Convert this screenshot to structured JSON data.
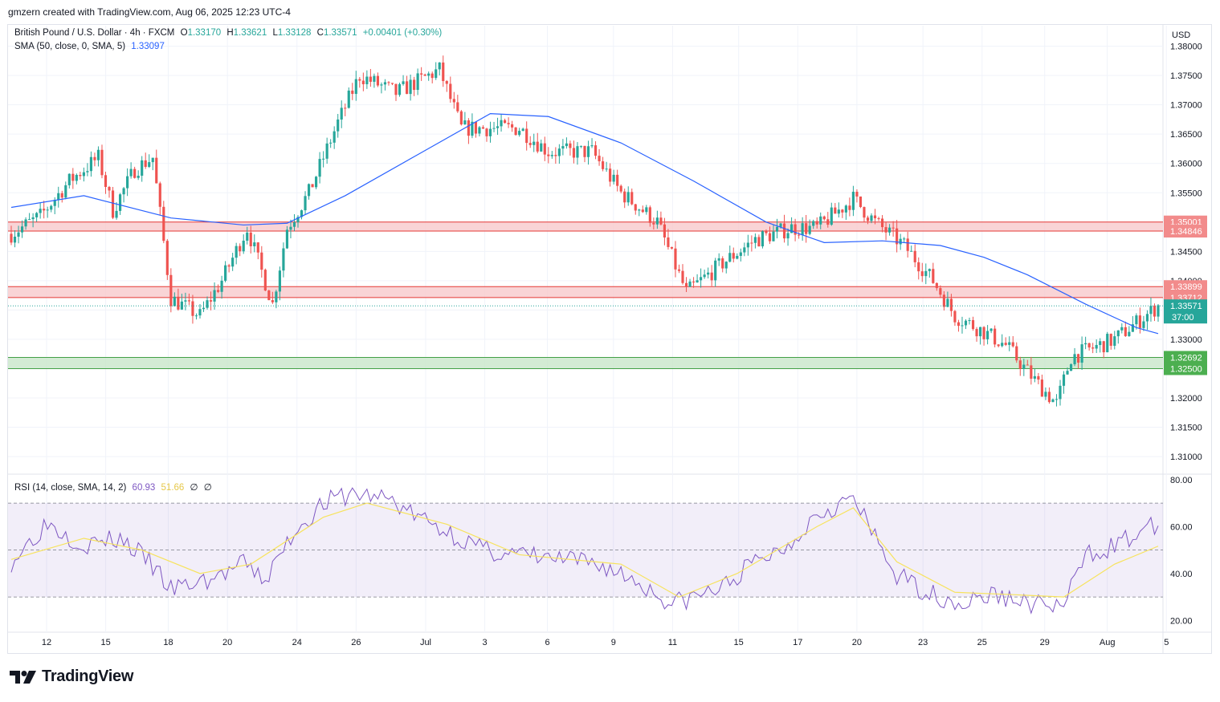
{
  "header": {
    "credit": "gmzern created with TradingView.com, Aug 06, 2025 12:23 UTC-4"
  },
  "legend": {
    "symbol": "British Pound / U.S. Dollar · 4h · FXCM",
    "o_label": "O",
    "o_value": "1.33170",
    "h_label": "H",
    "h_value": "1.33621",
    "l_label": "L",
    "l_value": "1.33128",
    "c_label": "C",
    "c_value": "1.33571",
    "change": "+0.00401 (+0.30%)",
    "sma_label": "SMA (50, close, 0, SMA, 5)",
    "sma_value": "1.33097",
    "rsi_label": "RSI (14, close, SMA, 14, 2)",
    "rsi_value": "60.93",
    "rsi_sma_value": "51.66",
    "rsi_extra1": "∅",
    "rsi_extra2": "∅"
  },
  "price_axis": {
    "currency": "USD"
  },
  "footer": {
    "brand": "TradingView"
  },
  "colors": {
    "up": "#26a69a",
    "down": "#ef5350",
    "sma": "#2962ff",
    "rsi": "#7e57c2",
    "rsi_sma": "#f7e35d",
    "resistance_fill": "#f8c9cc",
    "support_fill": "#c8e6c9"
  },
  "chart_data": [
    {
      "type": "candlestick",
      "title": "British Pound / U.S. Dollar · 4h · FXCM",
      "ylim": [
        1.307,
        1.3835
      ],
      "y_ticks": [
        "1.31000",
        "1.31500",
        "1.32000",
        "1.32500",
        "1.33000",
        "1.33500",
        "1.34000",
        "1.34500",
        "1.35000",
        "1.35500",
        "1.36000",
        "1.36500",
        "1.37000",
        "1.37500",
        "1.38000"
      ],
      "x_ticks": [
        "12",
        "15",
        "18",
        "20",
        "24",
        "26",
        "Jul",
        "3",
        "6",
        "9",
        "11",
        "15",
        "17",
        "20",
        "23",
        "25",
        "29",
        "Aug",
        "5"
      ],
      "last_price": "1.33571",
      "countdown": "37:00",
      "zones": [
        {
          "kind": "resistance",
          "low": 1.34846,
          "high": 1.35001,
          "low_label": "1.34846",
          "high_label": "1.35001"
        },
        {
          "kind": "resistance",
          "low": 1.33712,
          "high": 1.33899,
          "low_label": "1.33712",
          "high_label": "1.33899"
        },
        {
          "kind": "support",
          "low": 1.325,
          "high": 1.32692,
          "low_label": "1.32500",
          "high_label": "1.32692"
        }
      ],
      "close_path": [
        [
          0,
          1.348
        ],
        [
          8,
          1.351
        ],
        [
          16,
          1.357
        ],
        [
          24,
          1.361
        ],
        [
          28,
          1.352
        ],
        [
          34,
          1.359
        ],
        [
          39,
          1.361
        ],
        [
          44,
          1.337
        ],
        [
          52,
          1.334
        ],
        [
          58,
          1.34
        ],
        [
          65,
          1.349
        ],
        [
          72,
          1.336
        ],
        [
          76,
          1.349
        ],
        [
          82,
          1.355
        ],
        [
          90,
          1.367
        ],
        [
          96,
          1.375
        ],
        [
          106,
          1.372
        ],
        [
          118,
          1.376
        ],
        [
          124,
          1.366
        ],
        [
          130,
          1.366
        ],
        [
          140,
          1.366
        ],
        [
          148,
          1.362
        ],
        [
          160,
          1.362
        ],
        [
          168,
          1.355
        ],
        [
          178,
          1.35
        ],
        [
          186,
          1.338
        ],
        [
          196,
          1.343
        ],
        [
          205,
          1.347
        ],
        [
          215,
          1.349
        ],
        [
          222,
          1.349
        ],
        [
          232,
          1.354
        ],
        [
          238,
          1.35
        ],
        [
          246,
          1.346
        ],
        [
          254,
          1.34
        ],
        [
          260,
          1.334
        ],
        [
          266,
          1.332
        ],
        [
          274,
          1.329
        ],
        [
          282,
          1.323
        ],
        [
          288,
          1.319
        ],
        [
          292,
          1.327
        ],
        [
          304,
          1.33
        ],
        [
          316,
          1.3357
        ]
      ],
      "sma_series": [
        [
          0,
          1.3525
        ],
        [
          20,
          1.3545
        ],
        [
          44,
          1.3507
        ],
        [
          64,
          1.3495
        ],
        [
          76,
          1.3498
        ],
        [
          92,
          1.3545
        ],
        [
          112,
          1.3615
        ],
        [
          132,
          1.3685
        ],
        [
          148,
          1.368
        ],
        [
          168,
          1.3635
        ],
        [
          188,
          1.357
        ],
        [
          208,
          1.35
        ],
        [
          224,
          1.3465
        ],
        [
          240,
          1.3468
        ],
        [
          256,
          1.346
        ],
        [
          268,
          1.344
        ],
        [
          280,
          1.341
        ],
        [
          296,
          1.336
        ],
        [
          310,
          1.332
        ],
        [
          316,
          1.33097
        ]
      ]
    },
    {
      "type": "line",
      "title": "RSI (14, close, SMA, 14, 2)",
      "ylim": [
        15,
        82
      ],
      "y_ticks": [
        "20.00",
        "40.00",
        "60.00",
        "80.00"
      ],
      "levels": [
        30,
        50,
        70
      ],
      "series": [
        {
          "name": "RSI",
          "points": [
            [
              0,
              45
            ],
            [
              10,
              62
            ],
            [
              20,
              52
            ],
            [
              30,
              55
            ],
            [
              38,
              45
            ],
            [
              44,
              33
            ],
            [
              56,
              38
            ],
            [
              64,
              44
            ],
            [
              70,
              37
            ],
            [
              78,
              58
            ],
            [
              86,
              70
            ],
            [
              94,
              74
            ],
            [
              104,
              72
            ],
            [
              112,
              64
            ],
            [
              120,
              58
            ],
            [
              130,
              50
            ],
            [
              140,
              48
            ],
            [
              150,
              46
            ],
            [
              162,
              44
            ],
            [
              172,
              37
            ],
            [
              182,
              27
            ],
            [
              186,
              29
            ],
            [
              196,
              34
            ],
            [
              204,
              44
            ],
            [
              214,
              52
            ],
            [
              222,
              66
            ],
            [
              232,
              72
            ],
            [
              238,
              55
            ],
            [
              244,
              39
            ],
            [
              254,
              31
            ],
            [
              262,
              27
            ],
            [
              270,
              31
            ],
            [
              282,
              27
            ],
            [
              290,
              26
            ],
            [
              296,
              48
            ],
            [
              304,
              52
            ],
            [
              316,
              61
            ]
          ]
        },
        {
          "name": "RSI SMA",
          "points": [
            [
              0,
              46
            ],
            [
              20,
              55
            ],
            [
              36,
              50
            ],
            [
              52,
              40
            ],
            [
              66,
              44
            ],
            [
              86,
              64
            ],
            [
              98,
              70
            ],
            [
              120,
              61
            ],
            [
              140,
              48
            ],
            [
              168,
              44
            ],
            [
              184,
              30
            ],
            [
              200,
              40
            ],
            [
              222,
              60
            ],
            [
              232,
              68
            ],
            [
              244,
              45
            ],
            [
              260,
              32
            ],
            [
              276,
              31
            ],
            [
              290,
              30
            ],
            [
              304,
              44
            ],
            [
              316,
              51.66
            ]
          ]
        }
      ]
    }
  ]
}
